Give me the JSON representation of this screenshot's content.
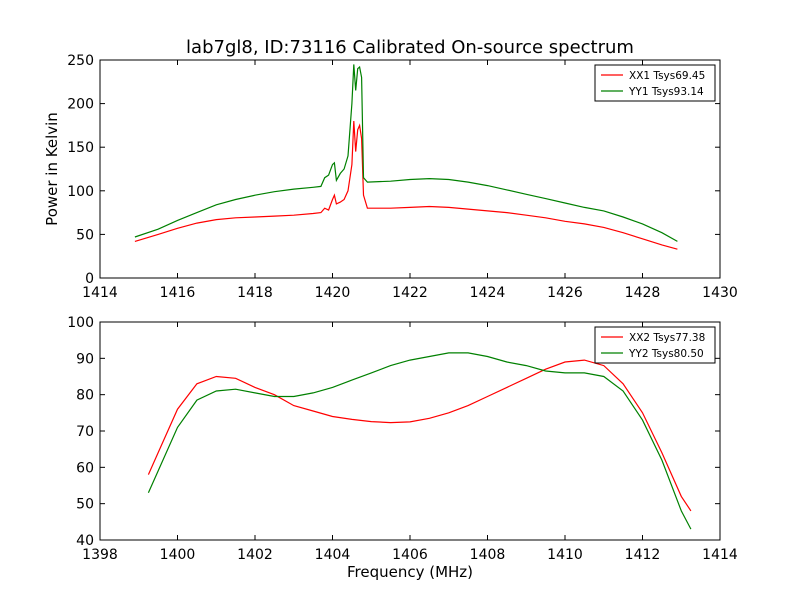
{
  "figure": {
    "title": "lab7gl8, ID:73116 Calibrated On-source spectrum",
    "shared_xlabel": "Frequency (MHz)"
  },
  "chart_data": [
    {
      "type": "line",
      "title": "lab7gl8, ID:73116 Calibrated On-source spectrum",
      "xlabel": "",
      "ylabel": "Power in Kelvin",
      "xlim": [
        1414,
        1430
      ],
      "ylim": [
        0,
        250
      ],
      "xticks": [
        1414,
        1416,
        1418,
        1420,
        1422,
        1424,
        1426,
        1428,
        1430
      ],
      "yticks": [
        0,
        50,
        100,
        150,
        200,
        250
      ],
      "grid": false,
      "legend_position": "top-right",
      "series": [
        {
          "name": "XX1 Tsys69.45",
          "color": "#ff0000",
          "points": [
            [
              1414.9,
              42
            ],
            [
              1415.5,
              50
            ],
            [
              1416,
              57
            ],
            [
              1416.5,
              63
            ],
            [
              1417,
              67
            ],
            [
              1417.5,
              69
            ],
            [
              1418,
              70
            ],
            [
              1418.5,
              71
            ],
            [
              1419,
              72
            ],
            [
              1419.5,
              74
            ],
            [
              1419.7,
              75
            ],
            [
              1419.8,
              80
            ],
            [
              1419.9,
              78
            ],
            [
              1420,
              90
            ],
            [
              1420.05,
              95
            ],
            [
              1420.1,
              85
            ],
            [
              1420.2,
              87
            ],
            [
              1420.3,
              90
            ],
            [
              1420.4,
              100
            ],
            [
              1420.5,
              130
            ],
            [
              1420.55,
              180
            ],
            [
              1420.6,
              145
            ],
            [
              1420.65,
              170
            ],
            [
              1420.7,
              175
            ],
            [
              1420.75,
              160
            ],
            [
              1420.8,
              95
            ],
            [
              1420.9,
              80
            ],
            [
              1421.5,
              80
            ],
            [
              1422,
              81
            ],
            [
              1422.5,
              82
            ],
            [
              1423,
              81
            ],
            [
              1423.5,
              79
            ],
            [
              1424,
              77
            ],
            [
              1424.5,
              75
            ],
            [
              1425,
              72
            ],
            [
              1425.5,
              69
            ],
            [
              1426,
              65
            ],
            [
              1426.5,
              62
            ],
            [
              1427,
              58
            ],
            [
              1427.5,
              52
            ],
            [
              1428,
              45
            ],
            [
              1428.5,
              38
            ],
            [
              1428.9,
              33
            ]
          ]
        },
        {
          "name": "YY1 Tsys93.14",
          "color": "#008000",
          "points": [
            [
              1414.9,
              47
            ],
            [
              1415.5,
              56
            ],
            [
              1416,
              66
            ],
            [
              1416.5,
              75
            ],
            [
              1417,
              84
            ],
            [
              1417.5,
              90
            ],
            [
              1418,
              95
            ],
            [
              1418.5,
              99
            ],
            [
              1419,
              102
            ],
            [
              1419.5,
              104
            ],
            [
              1419.7,
              105
            ],
            [
              1419.8,
              115
            ],
            [
              1419.9,
              118
            ],
            [
              1420,
              130
            ],
            [
              1420.05,
              132
            ],
            [
              1420.1,
              112
            ],
            [
              1420.2,
              120
            ],
            [
              1420.3,
              125
            ],
            [
              1420.4,
              140
            ],
            [
              1420.5,
              200
            ],
            [
              1420.55,
              245
            ],
            [
              1420.6,
              215
            ],
            [
              1420.65,
              240
            ],
            [
              1420.7,
              242
            ],
            [
              1420.75,
              230
            ],
            [
              1420.8,
              115
            ],
            [
              1420.9,
              110
            ],
            [
              1421.5,
              111
            ],
            [
              1422,
              113
            ],
            [
              1422.5,
              114
            ],
            [
              1423,
              113
            ],
            [
              1423.5,
              110
            ],
            [
              1424,
              106
            ],
            [
              1424.5,
              101
            ],
            [
              1425,
              96
            ],
            [
              1425.5,
              91
            ],
            [
              1426,
              86
            ],
            [
              1426.5,
              81
            ],
            [
              1427,
              77
            ],
            [
              1427.5,
              70
            ],
            [
              1428,
              62
            ],
            [
              1428.5,
              52
            ],
            [
              1428.9,
              42
            ]
          ]
        }
      ]
    },
    {
      "type": "line",
      "title": "",
      "xlabel": "Frequency (MHz)",
      "ylabel": "",
      "xlim": [
        1398,
        1414
      ],
      "ylim": [
        40,
        100
      ],
      "xticks": [
        1398,
        1400,
        1402,
        1404,
        1406,
        1408,
        1410,
        1412,
        1414
      ],
      "yticks": [
        40,
        50,
        60,
        70,
        80,
        90,
        100
      ],
      "grid": false,
      "legend_position": "top-right",
      "series": [
        {
          "name": "XX2 Tsys77.38",
          "color": "#ff0000",
          "points": [
            [
              1399.25,
              58
            ],
            [
              1399.5,
              64
            ],
            [
              1400,
              76
            ],
            [
              1400.5,
              83
            ],
            [
              1401,
              85
            ],
            [
              1401.5,
              84.5
            ],
            [
              1402,
              82
            ],
            [
              1402.5,
              80
            ],
            [
              1403,
              77
            ],
            [
              1403.5,
              75.5
            ],
            [
              1404,
              74
            ],
            [
              1404.5,
              73.2
            ],
            [
              1405,
              72.6
            ],
            [
              1405.5,
              72.3
            ],
            [
              1406,
              72.5
            ],
            [
              1406.5,
              73.5
            ],
            [
              1407,
              75
            ],
            [
              1407.5,
              77
            ],
            [
              1408,
              79.5
            ],
            [
              1408.5,
              82
            ],
            [
              1409,
              84.5
            ],
            [
              1409.5,
              87
            ],
            [
              1410,
              89
            ],
            [
              1410.5,
              89.5
            ],
            [
              1411,
              88
            ],
            [
              1411.5,
              83
            ],
            [
              1412,
              75
            ],
            [
              1412.5,
              64
            ],
            [
              1413,
              52
            ],
            [
              1413.25,
              48
            ]
          ]
        },
        {
          "name": "YY2 Tsys80.50",
          "color": "#008000",
          "points": [
            [
              1399.25,
              53
            ],
            [
              1399.5,
              59
            ],
            [
              1400,
              71
            ],
            [
              1400.5,
              78.5
            ],
            [
              1401,
              81
            ],
            [
              1401.5,
              81.5
            ],
            [
              1402,
              80.5
            ],
            [
              1402.5,
              79.5
            ],
            [
              1403,
              79.5
            ],
            [
              1403.5,
              80.5
            ],
            [
              1404,
              82
            ],
            [
              1404.5,
              84
            ],
            [
              1405,
              86
            ],
            [
              1405.5,
              88
            ],
            [
              1406,
              89.5
            ],
            [
              1406.5,
              90.5
            ],
            [
              1407,
              91.5
            ],
            [
              1407.5,
              91.5
            ],
            [
              1408,
              90.5
            ],
            [
              1408.5,
              89
            ],
            [
              1409,
              88
            ],
            [
              1409.5,
              86.5
            ],
            [
              1410,
              86
            ],
            [
              1410.5,
              86
            ],
            [
              1411,
              85
            ],
            [
              1411.5,
              81
            ],
            [
              1412,
              73
            ],
            [
              1412.5,
              62
            ],
            [
              1413,
              48
            ],
            [
              1413.25,
              43
            ]
          ]
        }
      ]
    }
  ]
}
